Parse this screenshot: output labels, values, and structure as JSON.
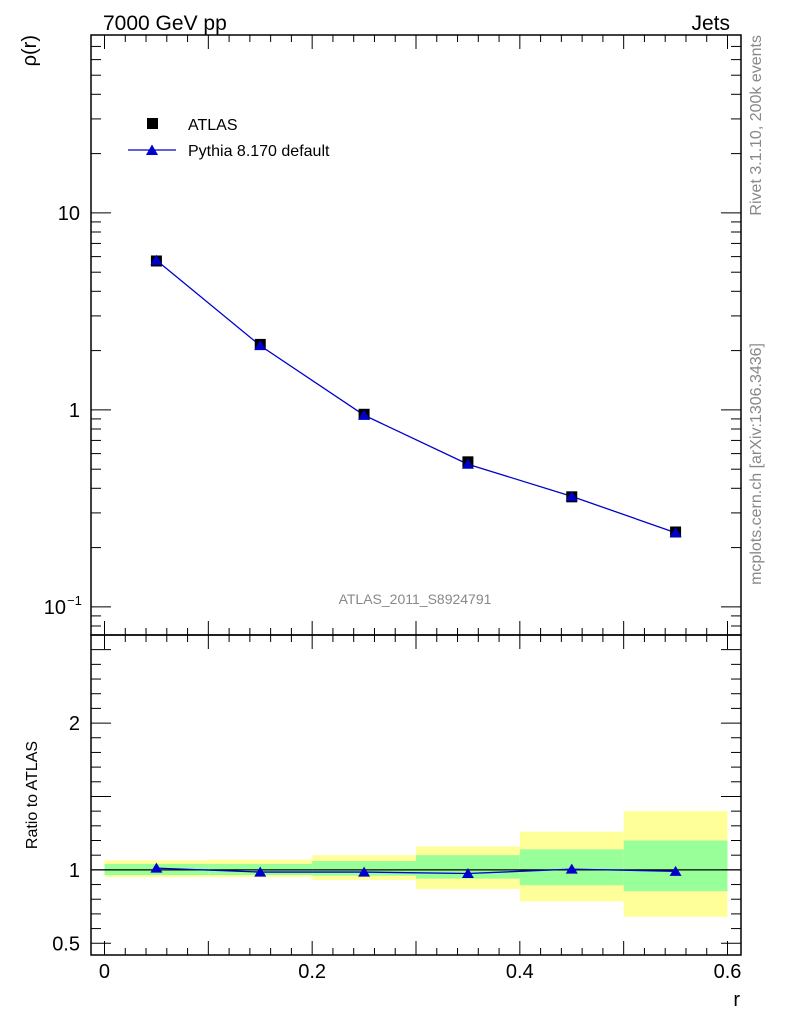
{
  "header": {
    "left": "7000 GeV pp",
    "right": "Jets"
  },
  "side_text": {
    "rivet": "Rivet 3.1.10,  200k events",
    "mcplots": "mcplots.cern.ch [arXiv:1306.3436]"
  },
  "watermark": "ATLAS_2011_S8924791",
  "colors": {
    "data_marker": "#000000",
    "mc_line": "#0000cc",
    "mc_marker": "#0000cc",
    "band_inner": "#99ff99",
    "band_outer": "#ffff99"
  },
  "chart_data": [
    {
      "type": "line",
      "panel": "main",
      "ylabel": "ρ(r)",
      "xlabel": "",
      "yscale": "log",
      "xlim": [
        -0.013,
        0.613
      ],
      "ylim": [
        0.072,
        80
      ],
      "ytick_labels": [
        "10^-1",
        "1",
        "10"
      ],
      "ytick_values": [
        0.1,
        1,
        10
      ],
      "legend_position": "top-left",
      "series": [
        {
          "name": "ATLAS",
          "marker": "square",
          "x": [
            0.05,
            0.15,
            0.25,
            0.35,
            0.45,
            0.55
          ],
          "values": [
            5.7,
            2.15,
            0.95,
            0.545,
            0.362,
            0.24
          ]
        },
        {
          "name": "Pythia 8.170 default",
          "marker": "triangle",
          "x": [
            0.05,
            0.15,
            0.25,
            0.35,
            0.45,
            0.55
          ],
          "values": [
            5.75,
            2.12,
            0.94,
            0.53,
            0.364,
            0.238
          ]
        }
      ]
    },
    {
      "type": "line",
      "panel": "ratio",
      "ylabel": "Ratio to ATLAS",
      "xlabel": "r",
      "xlim": [
        -0.013,
        0.613
      ],
      "ylim": [
        0.42,
        2.6
      ],
      "ytick_labels": [
        "0.5",
        "1",
        "2"
      ],
      "ytick_values": [
        0.5,
        1,
        2
      ],
      "xtick_labels": [
        "0",
        "0.2",
        "0.4",
        "0.6"
      ],
      "xtick_values": [
        0,
        0.2,
        0.4,
        0.6
      ],
      "bands": {
        "x_edges": [
          0.0,
          0.1,
          0.2,
          0.3,
          0.4,
          0.5,
          0.6
        ],
        "inner_low": [
          0.965,
          0.965,
          0.96,
          0.94,
          0.895,
          0.855
        ],
        "inner_high": [
          1.04,
          1.04,
          1.06,
          1.1,
          1.14,
          1.2
        ],
        "outer_low": [
          0.95,
          0.95,
          0.93,
          0.87,
          0.785,
          0.68
        ],
        "outer_high": [
          1.065,
          1.07,
          1.1,
          1.16,
          1.26,
          1.4
        ]
      },
      "series": [
        {
          "name": "Pythia 8.170 default",
          "marker": "triangle",
          "x": [
            0.05,
            0.15,
            0.25,
            0.35,
            0.45,
            0.55
          ],
          "values": [
            1.012,
            0.985,
            0.985,
            0.975,
            1.005,
            0.99
          ]
        }
      ]
    }
  ]
}
